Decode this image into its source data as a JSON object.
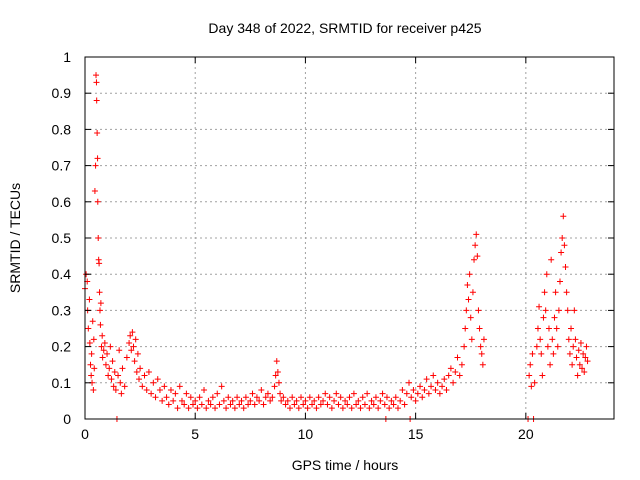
{
  "chart_data": {
    "type": "scatter",
    "title": "Day 348 of 2022, SRMTID for receiver p425",
    "xlabel": "GPS time / hours",
    "ylabel": "SRMTID / TECUs",
    "xlim": [
      0,
      24
    ],
    "ylim": [
      0,
      1
    ],
    "xticks": [
      0,
      5,
      10,
      15,
      20
    ],
    "yticks": [
      0,
      0.1,
      0.2,
      0.3,
      0.4,
      0.5,
      0.6,
      0.7,
      0.8,
      0.9,
      1
    ],
    "xtick_labels": [
      "0",
      "5",
      "10",
      "15",
      "20"
    ],
    "ytick_labels": [
      "0",
      "0.1",
      "0.2",
      "0.3",
      "0.4",
      "0.5",
      "0.6",
      "0.7",
      "0.8",
      "0.9",
      "1"
    ],
    "marker": "+",
    "color": "#ff0000",
    "grid": true,
    "series": [
      {
        "name": "SRMTID",
        "points": [
          [
            0.0,
            0.36
          ],
          [
            0.05,
            0.4
          ],
          [
            0.1,
            0.38
          ],
          [
            0.12,
            0.3
          ],
          [
            0.15,
            0.25
          ],
          [
            0.2,
            0.33
          ],
          [
            0.22,
            0.21
          ],
          [
            0.25,
            0.15
          ],
          [
            0.28,
            0.12
          ],
          [
            0.3,
            0.18
          ],
          [
            0.32,
            0.1
          ],
          [
            0.35,
            0.27
          ],
          [
            0.38,
            0.08
          ],
          [
            0.4,
            0.22
          ],
          [
            0.42,
            0.14
          ],
          [
            0.45,
            0.63
          ],
          [
            0.48,
            0.7
          ],
          [
            0.5,
            0.95
          ],
          [
            0.52,
            0.93
          ],
          [
            0.53,
            0.88
          ],
          [
            0.55,
            0.79
          ],
          [
            0.57,
            0.72
          ],
          [
            0.58,
            0.6
          ],
          [
            0.6,
            0.5
          ],
          [
            0.62,
            0.44
          ],
          [
            0.64,
            0.43
          ],
          [
            0.66,
            0.35
          ],
          [
            0.68,
            0.3
          ],
          [
            0.7,
            0.26
          ],
          [
            0.72,
            0.32
          ],
          [
            0.75,
            0.2
          ],
          [
            0.78,
            0.23
          ],
          [
            0.8,
            0.17
          ],
          [
            0.85,
            0.19
          ],
          [
            0.9,
            0.21
          ],
          [
            0.95,
            0.15
          ],
          [
            1.0,
            0.18
          ],
          [
            1.05,
            0.12
          ],
          [
            1.1,
            0.14
          ],
          [
            1.15,
            0.2
          ],
          [
            1.2,
            0.11
          ],
          [
            1.25,
            0.16
          ],
          [
            1.3,
            0.09
          ],
          [
            1.35,
            0.13
          ],
          [
            1.4,
            0.08
          ],
          [
            1.45,
            0.0
          ],
          [
            1.5,
            0.12
          ],
          [
            1.55,
            0.19
          ],
          [
            1.6,
            0.1
          ],
          [
            1.65,
            0.07
          ],
          [
            1.7,
            0.14
          ],
          [
            1.8,
            0.09
          ],
          [
            1.9,
            0.17
          ],
          [
            2.0,
            0.21
          ],
          [
            2.05,
            0.23
          ],
          [
            2.1,
            0.19
          ],
          [
            2.15,
            0.24
          ],
          [
            2.2,
            0.2
          ],
          [
            2.25,
            0.16
          ],
          [
            2.3,
            0.22
          ],
          [
            2.35,
            0.13
          ],
          [
            2.4,
            0.18
          ],
          [
            2.45,
            0.11
          ],
          [
            2.5,
            0.14
          ],
          [
            2.6,
            0.09
          ],
          [
            2.7,
            0.12
          ],
          [
            2.8,
            0.08
          ],
          [
            2.9,
            0.13
          ],
          [
            3.0,
            0.07
          ],
          [
            3.1,
            0.1
          ],
          [
            3.2,
            0.06
          ],
          [
            3.3,
            0.11
          ],
          [
            3.4,
            0.08
          ],
          [
            3.5,
            0.05
          ],
          [
            3.6,
            0.09
          ],
          [
            3.7,
            0.06
          ],
          [
            3.8,
            0.04
          ],
          [
            3.9,
            0.08
          ],
          [
            4.0,
            0.05
          ],
          [
            4.1,
            0.07
          ],
          [
            4.2,
            0.03
          ],
          [
            4.3,
            0.09
          ],
          [
            4.4,
            0.05
          ],
          [
            4.5,
            0.04
          ],
          [
            4.6,
            0.07
          ],
          [
            4.7,
            0.03
          ],
          [
            4.8,
            0.06
          ],
          [
            4.9,
            0.04
          ],
          [
            5.0,
            0.05
          ],
          [
            5.1,
            0.03
          ],
          [
            5.2,
            0.06
          ],
          [
            5.3,
            0.04
          ],
          [
            5.4,
            0.08
          ],
          [
            5.5,
            0.03
          ],
          [
            5.6,
            0.05
          ],
          [
            5.7,
            0.04
          ],
          [
            5.8,
            0.06
          ],
          [
            5.9,
            0.03
          ],
          [
            6.0,
            0.07
          ],
          [
            6.1,
            0.04
          ],
          [
            6.2,
            0.09
          ],
          [
            6.3,
            0.05
          ],
          [
            6.4,
            0.03
          ],
          [
            6.5,
            0.06
          ],
          [
            6.6,
            0.04
          ],
          [
            6.7,
            0.05
          ],
          [
            6.8,
            0.03
          ],
          [
            6.9,
            0.06
          ],
          [
            7.0,
            0.04
          ],
          [
            7.1,
            0.05
          ],
          [
            7.2,
            0.03
          ],
          [
            7.3,
            0.06
          ],
          [
            7.4,
            0.04
          ],
          [
            7.5,
            0.05
          ],
          [
            7.6,
            0.07
          ],
          [
            7.7,
            0.04
          ],
          [
            7.8,
            0.06
          ],
          [
            7.9,
            0.05
          ],
          [
            8.0,
            0.08
          ],
          [
            8.1,
            0.04
          ],
          [
            8.2,
            0.06
          ],
          [
            8.3,
            0.07
          ],
          [
            8.4,
            0.05
          ],
          [
            8.5,
            0.06
          ],
          [
            8.6,
            0.09
          ],
          [
            8.65,
            0.12
          ],
          [
            8.7,
            0.16
          ],
          [
            8.75,
            0.13
          ],
          [
            8.8,
            0.1
          ],
          [
            8.85,
            0.07
          ],
          [
            8.9,
            0.05
          ],
          [
            9.0,
            0.06
          ],
          [
            9.1,
            0.04
          ],
          [
            9.2,
            0.05
          ],
          [
            9.3,
            0.03
          ],
          [
            9.4,
            0.06
          ],
          [
            9.5,
            0.04
          ],
          [
            9.6,
            0.05
          ],
          [
            9.7,
            0.03
          ],
          [
            9.8,
            0.06
          ],
          [
            9.9,
            0.04
          ],
          [
            10.0,
            0.05
          ],
          [
            10.1,
            0.03
          ],
          [
            10.2,
            0.06
          ],
          [
            10.3,
            0.04
          ],
          [
            10.4,
            0.05
          ],
          [
            10.5,
            0.03
          ],
          [
            10.6,
            0.06
          ],
          [
            10.7,
            0.04
          ],
          [
            10.8,
            0.05
          ],
          [
            10.9,
            0.07
          ],
          [
            11.0,
            0.04
          ],
          [
            11.1,
            0.06
          ],
          [
            11.2,
            0.03
          ],
          [
            11.3,
            0.05
          ],
          [
            11.4,
            0.07
          ],
          [
            11.5,
            0.04
          ],
          [
            11.6,
            0.06
          ],
          [
            11.7,
            0.03
          ],
          [
            11.8,
            0.05
          ],
          [
            11.9,
            0.04
          ],
          [
            12.0,
            0.06
          ],
          [
            12.1,
            0.03
          ],
          [
            12.2,
            0.07
          ],
          [
            12.3,
            0.04
          ],
          [
            12.4,
            0.05
          ],
          [
            12.5,
            0.03
          ],
          [
            12.6,
            0.06
          ],
          [
            12.7,
            0.04
          ],
          [
            12.8,
            0.07
          ],
          [
            12.9,
            0.03
          ],
          [
            13.0,
            0.05
          ],
          [
            13.1,
            0.04
          ],
          [
            13.2,
            0.06
          ],
          [
            13.3,
            0.03
          ],
          [
            13.4,
            0.05
          ],
          [
            13.5,
            0.07
          ],
          [
            13.6,
            0.04
          ],
          [
            13.65,
            0.0
          ],
          [
            13.7,
            0.06
          ],
          [
            13.8,
            0.03
          ],
          [
            13.9,
            0.05
          ],
          [
            14.0,
            0.04
          ],
          [
            14.1,
            0.06
          ],
          [
            14.2,
            0.03
          ],
          [
            14.3,
            0.05
          ],
          [
            14.4,
            0.08
          ],
          [
            14.5,
            0.04
          ],
          [
            14.6,
            0.07
          ],
          [
            14.7,
            0.1
          ],
          [
            14.75,
            0.0
          ],
          [
            14.8,
            0.06
          ],
          [
            14.9,
            0.08
          ],
          [
            15.0,
            0.05
          ],
          [
            15.1,
            0.07
          ],
          [
            15.2,
            0.09
          ],
          [
            15.3,
            0.06
          ],
          [
            15.4,
            0.08
          ],
          [
            15.5,
            0.11
          ],
          [
            15.6,
            0.07
          ],
          [
            15.7,
            0.09
          ],
          [
            15.8,
            0.12
          ],
          [
            15.9,
            0.08
          ],
          [
            16.0,
            0.1
          ],
          [
            16.1,
            0.07
          ],
          [
            16.2,
            0.09
          ],
          [
            16.3,
            0.11
          ],
          [
            16.4,
            0.08
          ],
          [
            16.5,
            0.12
          ],
          [
            16.6,
            0.14
          ],
          [
            16.7,
            0.1
          ],
          [
            16.8,
            0.13
          ],
          [
            16.9,
            0.17
          ],
          [
            17.0,
            0.12
          ],
          [
            17.1,
            0.15
          ],
          [
            17.2,
            0.2
          ],
          [
            17.25,
            0.25
          ],
          [
            17.3,
            0.3
          ],
          [
            17.35,
            0.37
          ],
          [
            17.4,
            0.33
          ],
          [
            17.45,
            0.4
          ],
          [
            17.5,
            0.28
          ],
          [
            17.55,
            0.22
          ],
          [
            17.6,
            0.35
          ],
          [
            17.65,
            0.44
          ],
          [
            17.7,
            0.48
          ],
          [
            17.75,
            0.51
          ],
          [
            17.8,
            0.45
          ],
          [
            17.85,
            0.3
          ],
          [
            17.9,
            0.25
          ],
          [
            17.95,
            0.2
          ],
          [
            18.0,
            0.18
          ],
          [
            18.05,
            0.15
          ],
          [
            18.1,
            0.22
          ],
          [
            20.1,
            0.0
          ],
          [
            20.15,
            0.12
          ],
          [
            20.2,
            0.15
          ],
          [
            20.25,
            0.09
          ],
          [
            20.3,
            0.18
          ],
          [
            20.35,
            0.0
          ],
          [
            20.4,
            0.1
          ],
          [
            20.5,
            0.2
          ],
          [
            20.55,
            0.25
          ],
          [
            20.6,
            0.31
          ],
          [
            20.65,
            0.22
          ],
          [
            20.7,
            0.18
          ],
          [
            20.75,
            0.12
          ],
          [
            20.8,
            0.28
          ],
          [
            20.85,
            0.35
          ],
          [
            20.9,
            0.3
          ],
          [
            20.95,
            0.4
          ],
          [
            21.0,
            0.2
          ],
          [
            21.05,
            0.25
          ],
          [
            21.1,
            0.15
          ],
          [
            21.15,
            0.44
          ],
          [
            21.2,
            0.22
          ],
          [
            21.25,
            0.18
          ],
          [
            21.3,
            0.28
          ],
          [
            21.35,
            0.35
          ],
          [
            21.4,
            0.25
          ],
          [
            21.45,
            0.2
          ],
          [
            21.5,
            0.3
          ],
          [
            21.55,
            0.38
          ],
          [
            21.6,
            0.46
          ],
          [
            21.65,
            0.5
          ],
          [
            21.7,
            0.56
          ],
          [
            21.75,
            0.48
          ],
          [
            21.8,
            0.42
          ],
          [
            21.85,
            0.35
          ],
          [
            21.9,
            0.3
          ],
          [
            21.95,
            0.22
          ],
          [
            22.0,
            0.18
          ],
          [
            22.05,
            0.25
          ],
          [
            22.1,
            0.15
          ],
          [
            22.15,
            0.2
          ],
          [
            22.2,
            0.3
          ],
          [
            22.25,
            0.22
          ],
          [
            22.3,
            0.17
          ],
          [
            22.35,
            0.12
          ],
          [
            22.4,
            0.19
          ],
          [
            22.45,
            0.15
          ],
          [
            22.5,
            0.21
          ],
          [
            22.55,
            0.14
          ],
          [
            22.6,
            0.18
          ],
          [
            22.65,
            0.13
          ],
          [
            22.7,
            0.17
          ],
          [
            22.75,
            0.2
          ],
          [
            22.8,
            0.16
          ]
        ]
      }
    ]
  }
}
